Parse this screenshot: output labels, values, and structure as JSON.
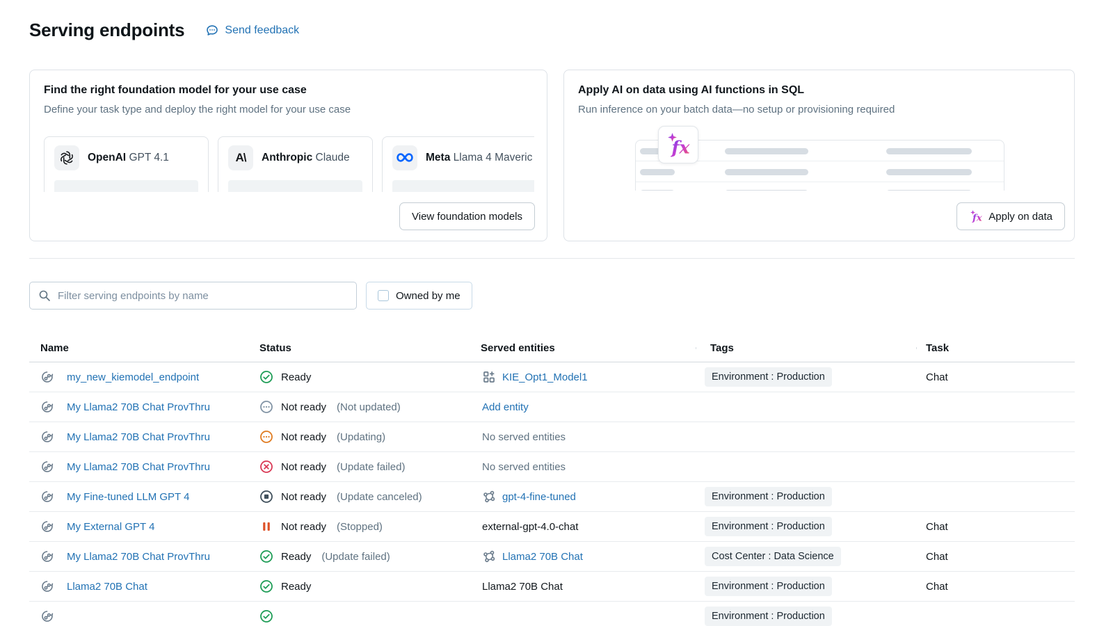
{
  "header": {
    "title": "Serving endpoints",
    "feedback": "Send feedback"
  },
  "foundation_card": {
    "title": "Find the right foundation model for your use case",
    "subtitle": "Define your task type and deploy the right model for your use case",
    "models": [
      {
        "provider": "OpenAI",
        "model": "GPT 4.1",
        "logo": "openai-logo"
      },
      {
        "provider": "Anthropic",
        "model": "Claude",
        "logo": "anthropic-logo",
        "logo_text": "A\\"
      },
      {
        "provider": "Meta",
        "model": "Llama 4 Maveric",
        "logo": "meta-logo"
      }
    ],
    "button": "View foundation models"
  },
  "ai_card": {
    "title": "Apply AI on data using AI functions in SQL",
    "subtitle": "Run inference on your batch data—no setup or provisioning required",
    "button": "Apply on data"
  },
  "filters": {
    "search_placeholder": "Filter serving endpoints by name",
    "owned_by_me_label": "Owned by me",
    "owned_by_me_checked": false
  },
  "table": {
    "columns": [
      "Name",
      "Status",
      "Served entities",
      "Tags",
      "Task"
    ],
    "rows": [
      {
        "name": "my_new_kiemodel_endpoint",
        "status": "Ready",
        "status_detail": "",
        "status_kind": "ready",
        "entity_text": "KIE_Opt1_Model1",
        "entity_kind": "link",
        "entity_icon": "grid-plus",
        "tag": "Environment : Production",
        "task": "Chat"
      },
      {
        "name": "My Llama2 70B Chat ProvThru",
        "status": "Not ready",
        "status_detail": "(Not updated)",
        "status_kind": "not-updated",
        "entity_text": "Add entity",
        "entity_kind": "action",
        "entity_icon": "",
        "tag": "",
        "task": ""
      },
      {
        "name": "My Llama2 70B Chat ProvThru",
        "status": "Not ready",
        "status_detail": "(Updating)",
        "status_kind": "updating",
        "entity_text": "No served entities",
        "entity_kind": "muted",
        "entity_icon": "",
        "tag": "",
        "task": ""
      },
      {
        "name": "My Llama2 70B Chat ProvThru",
        "status": "Not ready",
        "status_detail": "(Update failed)",
        "status_kind": "failed",
        "entity_text": "No served entities",
        "entity_kind": "muted",
        "entity_icon": "",
        "tag": "",
        "task": ""
      },
      {
        "name": "My Fine-tuned LLM GPT 4",
        "status": "Not ready",
        "status_detail": "(Update canceled)",
        "status_kind": "canceled",
        "entity_text": "gpt-4-fine-tuned",
        "entity_kind": "link",
        "entity_icon": "model-graph",
        "tag": "Environment : Production",
        "task": ""
      },
      {
        "name": "My External GPT 4",
        "status": "Not ready",
        "status_detail": "(Stopped)",
        "status_kind": "stopped",
        "entity_text": "external-gpt-4.0-chat",
        "entity_kind": "plain",
        "entity_icon": "",
        "tag": "Environment : Production",
        "task": "Chat"
      },
      {
        "name": "My Llama2 70B Chat ProvThru",
        "status": "Ready",
        "status_detail": "(Update failed)",
        "status_kind": "ready",
        "entity_text": "Llama2 70B Chat",
        "entity_kind": "link",
        "entity_icon": "model-graph",
        "tag": "Cost Center : Data Science",
        "task": "Chat"
      },
      {
        "name": "Llama2 70B Chat",
        "status": "Ready",
        "status_detail": "",
        "status_kind": "ready",
        "entity_text": "Llama2 70B Chat",
        "entity_kind": "plain",
        "entity_icon": "",
        "tag": "Environment : Production",
        "task": "Chat"
      },
      {
        "name": "",
        "status": "",
        "status_detail": "",
        "status_kind": "ready",
        "entity_text": "",
        "entity_kind": "none",
        "entity_icon": "",
        "tag": "Environment : Production",
        "task": ""
      }
    ]
  },
  "icons": {
    "feedback": "speech-bubble-icon",
    "search": "search-icon",
    "endpoint": "serving-endpoint-icon",
    "fx": "ai-function-fx-icon",
    "status": [
      "check-circle-icon",
      "dots-circle-icon",
      "x-circle-icon",
      "stop-circle-icon",
      "pause-icon"
    ]
  },
  "colors": {
    "link": "#2272B4",
    "ready_green": "#1F9D57",
    "warn_orange": "#E07C22",
    "stopped_orange": "#DD5228",
    "error_red": "#D93A56",
    "canceled_gray": "#40505C",
    "neutral_gray": "#8294A5",
    "icon_gray": "#6B7C8C",
    "meta_blue": "#0866FF",
    "chip_bg": "#F0F3F5",
    "fx_gradient": [
      "#7040EE",
      "#C73FD0",
      "#F2545B"
    ]
  }
}
